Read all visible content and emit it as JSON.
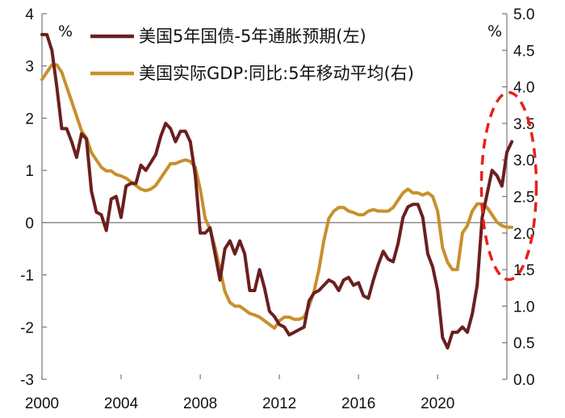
{
  "chart_data": {
    "type": "line",
    "left_axis": {
      "unit": "%",
      "ylim": [
        -3,
        4
      ],
      "ticks": [
        "4",
        "3",
        "2",
        "1",
        "0",
        "-1",
        "-2",
        "-3"
      ]
    },
    "right_axis": {
      "unit": "%",
      "ylim": [
        0.0,
        5.0
      ],
      "ticks": [
        "5.0",
        "4.5",
        "4.0",
        "3.5",
        "3.0",
        "2.5",
        "2.0",
        "1.5",
        "1.0",
        "0.5",
        "0.0"
      ]
    },
    "x_axis": {
      "xlim": [
        2000,
        2023.5
      ],
      "ticks": [
        "2000",
        "2004",
        "2008",
        "2012",
        "2016",
        "2020"
      ]
    },
    "legend_position": "top-center",
    "grid": false,
    "series": [
      {
        "name": "美国5年国债-5年通胀预期(左)",
        "axis": "left",
        "color": "#6b1f1f",
        "points": [
          [
            2000.0,
            3.6
          ],
          [
            2000.25,
            3.6
          ],
          [
            2000.5,
            3.3
          ],
          [
            2000.75,
            2.6
          ],
          [
            2001.0,
            1.8
          ],
          [
            2001.25,
            1.8
          ],
          [
            2001.5,
            1.55
          ],
          [
            2001.75,
            1.25
          ],
          [
            2002.0,
            1.7
          ],
          [
            2002.25,
            1.6
          ],
          [
            2002.5,
            0.6
          ],
          [
            2002.75,
            0.2
          ],
          [
            2003.0,
            0.15
          ],
          [
            2003.25,
            -0.15
          ],
          [
            2003.5,
            0.45
          ],
          [
            2003.75,
            0.5
          ],
          [
            2004.0,
            0.1
          ],
          [
            2004.25,
            0.7
          ],
          [
            2004.5,
            0.75
          ],
          [
            2004.75,
            0.75
          ],
          [
            2005.0,
            1.1
          ],
          [
            2005.25,
            1.0
          ],
          [
            2005.5,
            1.15
          ],
          [
            2005.75,
            1.3
          ],
          [
            2006.0,
            1.65
          ],
          [
            2006.25,
            1.9
          ],
          [
            2006.5,
            1.8
          ],
          [
            2006.75,
            1.55
          ],
          [
            2007.0,
            1.75
          ],
          [
            2007.25,
            1.75
          ],
          [
            2007.5,
            1.55
          ],
          [
            2007.75,
            0.9
          ],
          [
            2008.0,
            -0.2
          ],
          [
            2008.25,
            -0.2
          ],
          [
            2008.5,
            -0.1
          ],
          [
            2008.75,
            -0.6
          ],
          [
            2009.0,
            -1.1
          ],
          [
            2009.25,
            -0.5
          ],
          [
            2009.5,
            -0.35
          ],
          [
            2009.75,
            -0.6
          ],
          [
            2010.0,
            -0.35
          ],
          [
            2010.25,
            -0.6
          ],
          [
            2010.5,
            -1.3
          ],
          [
            2010.75,
            -1.3
          ],
          [
            2011.0,
            -0.9
          ],
          [
            2011.25,
            -1.25
          ],
          [
            2011.5,
            -1.7
          ],
          [
            2011.75,
            -1.8
          ],
          [
            2012.0,
            -1.95
          ],
          [
            2012.25,
            -2.0
          ],
          [
            2012.5,
            -2.15
          ],
          [
            2012.75,
            -2.1
          ],
          [
            2013.0,
            -2.05
          ],
          [
            2013.25,
            -2.0
          ],
          [
            2013.5,
            -1.5
          ],
          [
            2013.75,
            -1.35
          ],
          [
            2014.0,
            -1.3
          ],
          [
            2014.25,
            -1.2
          ],
          [
            2014.5,
            -1.1
          ],
          [
            2014.75,
            -1.15
          ],
          [
            2015.0,
            -1.3
          ],
          [
            2015.25,
            -1.1
          ],
          [
            2015.5,
            -1.05
          ],
          [
            2015.75,
            -1.2
          ],
          [
            2016.0,
            -1.15
          ],
          [
            2016.25,
            -1.4
          ],
          [
            2016.5,
            -1.45
          ],
          [
            2016.75,
            -1.1
          ],
          [
            2017.0,
            -0.8
          ],
          [
            2017.25,
            -0.55
          ],
          [
            2017.5,
            -0.7
          ],
          [
            2017.75,
            -0.75
          ],
          [
            2018.0,
            -0.4
          ],
          [
            2018.25,
            0.1
          ],
          [
            2018.5,
            0.3
          ],
          [
            2018.75,
            0.35
          ],
          [
            2019.0,
            0.35
          ],
          [
            2019.25,
            0.1
          ],
          [
            2019.5,
            -0.6
          ],
          [
            2019.75,
            -0.85
          ],
          [
            2020.0,
            -1.3
          ],
          [
            2020.25,
            -2.2
          ],
          [
            2020.5,
            -2.4
          ],
          [
            2020.75,
            -2.1
          ],
          [
            2021.0,
            -2.1
          ],
          [
            2021.25,
            -2.0
          ],
          [
            2021.5,
            -2.1
          ],
          [
            2021.75,
            -1.75
          ],
          [
            2022.0,
            -1.2
          ],
          [
            2022.25,
            0.1
          ],
          [
            2022.5,
            0.55
          ],
          [
            2022.75,
            1.0
          ],
          [
            2023.0,
            0.9
          ],
          [
            2023.25,
            0.7
          ],
          [
            2023.5,
            1.35
          ],
          [
            2023.75,
            1.55
          ]
        ]
      },
      {
        "name": "美国实际GDP:同比:5年移动平均(右)",
        "axis": "right",
        "color": "#c8902e",
        "points": [
          [
            2000.0,
            4.1
          ],
          [
            2000.25,
            4.2
          ],
          [
            2000.5,
            4.3
          ],
          [
            2000.75,
            4.3
          ],
          [
            2001.0,
            4.2
          ],
          [
            2001.25,
            4.0
          ],
          [
            2001.5,
            3.8
          ],
          [
            2001.75,
            3.6
          ],
          [
            2002.0,
            3.4
          ],
          [
            2002.25,
            3.3
          ],
          [
            2002.5,
            3.1
          ],
          [
            2002.75,
            3.0
          ],
          [
            2003.0,
            2.9
          ],
          [
            2003.25,
            2.85
          ],
          [
            2003.5,
            2.85
          ],
          [
            2003.75,
            2.8
          ],
          [
            2004.0,
            2.78
          ],
          [
            2004.25,
            2.75
          ],
          [
            2004.5,
            2.7
          ],
          [
            2004.75,
            2.65
          ],
          [
            2005.0,
            2.6
          ],
          [
            2005.25,
            2.58
          ],
          [
            2005.5,
            2.6
          ],
          [
            2005.75,
            2.65
          ],
          [
            2006.0,
            2.75
          ],
          [
            2006.25,
            2.85
          ],
          [
            2006.5,
            2.95
          ],
          [
            2006.75,
            2.95
          ],
          [
            2007.0,
            2.98
          ],
          [
            2007.25,
            3.0
          ],
          [
            2007.5,
            2.98
          ],
          [
            2007.75,
            2.9
          ],
          [
            2008.0,
            2.6
          ],
          [
            2008.25,
            2.2
          ],
          [
            2008.5,
            2.05
          ],
          [
            2008.75,
            1.8
          ],
          [
            2009.0,
            1.5
          ],
          [
            2009.25,
            1.2
          ],
          [
            2009.5,
            1.05
          ],
          [
            2009.75,
            1.0
          ],
          [
            2010.0,
            1.0
          ],
          [
            2010.25,
            0.95
          ],
          [
            2010.5,
            0.9
          ],
          [
            2010.75,
            0.88
          ],
          [
            2011.0,
            0.85
          ],
          [
            2011.25,
            0.8
          ],
          [
            2011.5,
            0.75
          ],
          [
            2011.75,
            0.7
          ],
          [
            2012.0,
            0.8
          ],
          [
            2012.25,
            0.85
          ],
          [
            2012.5,
            0.85
          ],
          [
            2012.75,
            0.82
          ],
          [
            2013.0,
            0.82
          ],
          [
            2013.25,
            0.85
          ],
          [
            2013.5,
            1.0
          ],
          [
            2013.75,
            1.2
          ],
          [
            2014.0,
            1.5
          ],
          [
            2014.25,
            1.9
          ],
          [
            2014.5,
            2.2
          ],
          [
            2014.75,
            2.3
          ],
          [
            2015.0,
            2.35
          ],
          [
            2015.25,
            2.35
          ],
          [
            2015.5,
            2.3
          ],
          [
            2015.75,
            2.28
          ],
          [
            2016.0,
            2.25
          ],
          [
            2016.25,
            2.25
          ],
          [
            2016.5,
            2.3
          ],
          [
            2016.75,
            2.32
          ],
          [
            2017.0,
            2.3
          ],
          [
            2017.25,
            2.3
          ],
          [
            2017.5,
            2.3
          ],
          [
            2017.75,
            2.35
          ],
          [
            2018.0,
            2.45
          ],
          [
            2018.25,
            2.55
          ],
          [
            2018.5,
            2.6
          ],
          [
            2018.75,
            2.55
          ],
          [
            2019.0,
            2.55
          ],
          [
            2019.25,
            2.52
          ],
          [
            2019.5,
            2.55
          ],
          [
            2019.75,
            2.5
          ],
          [
            2020.0,
            2.3
          ],
          [
            2020.25,
            1.8
          ],
          [
            2020.5,
            1.6
          ],
          [
            2020.75,
            1.5
          ],
          [
            2021.0,
            1.5
          ],
          [
            2021.25,
            2.0
          ],
          [
            2021.5,
            2.1
          ],
          [
            2021.75,
            2.3
          ],
          [
            2022.0,
            2.4
          ],
          [
            2022.25,
            2.4
          ],
          [
            2022.5,
            2.35
          ],
          [
            2022.75,
            2.25
          ],
          [
            2023.0,
            2.15
          ],
          [
            2023.25,
            2.1
          ],
          [
            2023.5,
            2.08
          ],
          [
            2023.75,
            2.08
          ]
        ]
      }
    ],
    "annotation": {
      "type": "dashed-ellipse",
      "color": "#e8201a",
      "center_x": 2023.6,
      "center_y_left": 0.7
    }
  }
}
